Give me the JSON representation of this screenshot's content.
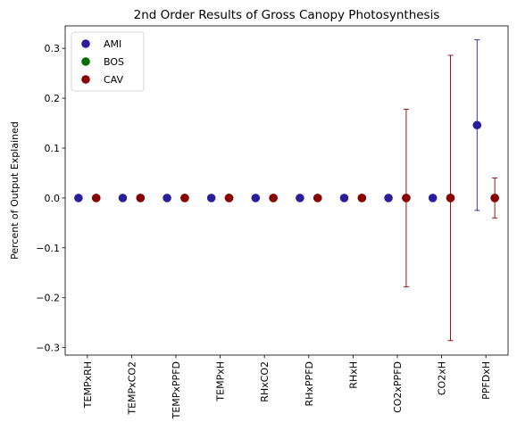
{
  "chart_data": {
    "type": "scatter",
    "title": "2nd Order Results of Gross Canopy Photosynthesis",
    "xlabel": "",
    "ylabel": "Percent of Output Explained",
    "ylim": [
      -0.315,
      0.345
    ],
    "yticks": [
      -0.3,
      -0.2,
      -0.1,
      0.0,
      0.1,
      0.2,
      0.3
    ],
    "ytick_labels": [
      "−0.3",
      "−0.2",
      "−0.1",
      "0.0",
      "0.1",
      "0.2",
      "0.3"
    ],
    "categories": [
      "TEMPxRH",
      "TEMPxCO2",
      "TEMPxPPFD",
      "TEMPxH",
      "RHxCO2",
      "RHxPPFD",
      "RHxH",
      "CO2xPPFD",
      "CO2xH",
      "PPFDxH"
    ],
    "legend_position": "top-left",
    "grid": false,
    "series": [
      {
        "name": "AMI",
        "color": "#2a1d9a",
        "offset": -0.2,
        "values": [
          0,
          0,
          0,
          0,
          0,
          0,
          0,
          0,
          0,
          0.146
        ],
        "errors": [
          0,
          0,
          0,
          0,
          0,
          0,
          0,
          0,
          0,
          0.171
        ]
      },
      {
        "name": "BOS",
        "color": "#007000",
        "offset": 0.2,
        "values": [
          0,
          0,
          0,
          0,
          0,
          0,
          0,
          0,
          0,
          0
        ],
        "errors": [
          0,
          0,
          0,
          0,
          0,
          0,
          0,
          0,
          0,
          0
        ]
      },
      {
        "name": "CAV",
        "color": "#8b0000",
        "offset": 0.2,
        "values": [
          0,
          0,
          0,
          0,
          0,
          0,
          0,
          0,
          0,
          0
        ],
        "errors": [
          0,
          0,
          0,
          0,
          0,
          0,
          0,
          0.178,
          0.286,
          0.04
        ]
      }
    ]
  }
}
